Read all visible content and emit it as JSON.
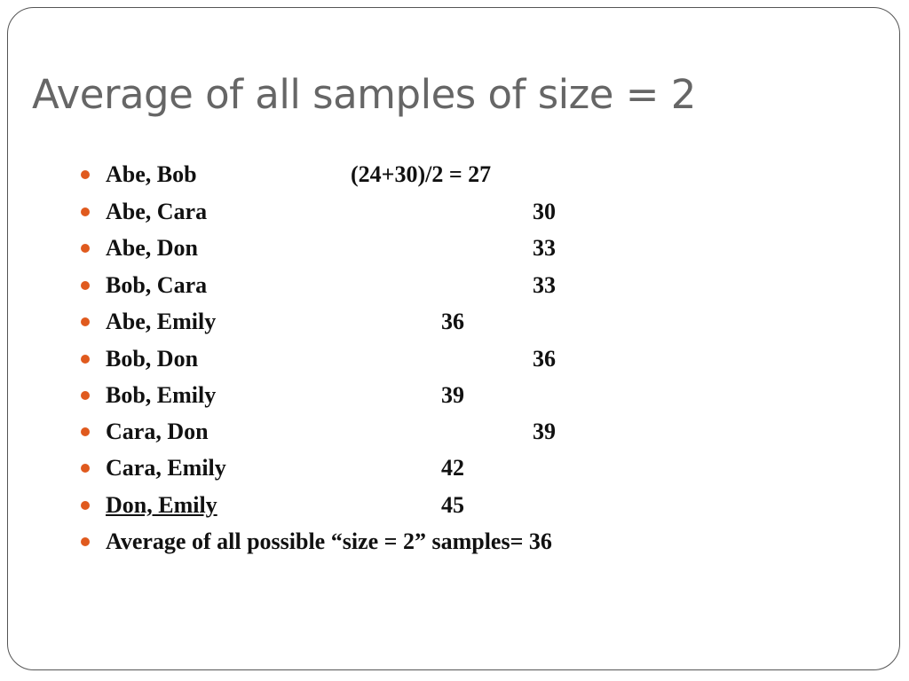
{
  "title": "Average of all samples of size = 2",
  "bullets": [
    {
      "pair": "Abe, Bob",
      "value": "(24+30)/2 = 27"
    },
    {
      "pair": "Abe, Cara",
      "value": 30
    },
    {
      "pair": "Abe, Don",
      "value": 33
    },
    {
      "pair": "Bob, Cara",
      "value": 33
    },
    {
      "pair": "Abe, Emily",
      "value": 36
    },
    {
      "pair": "Bob, Don",
      "value": 36
    },
    {
      "pair": "Bob, Emily",
      "value": 39
    },
    {
      "pair": "Cara, Don",
      "value": 39
    },
    {
      "pair": "Cara, Emily",
      "value": 42
    },
    {
      "pair": "Don, Emily",
      "value": 45
    }
  ],
  "summary": "Average of all possible “size = 2” samples= 36"
}
